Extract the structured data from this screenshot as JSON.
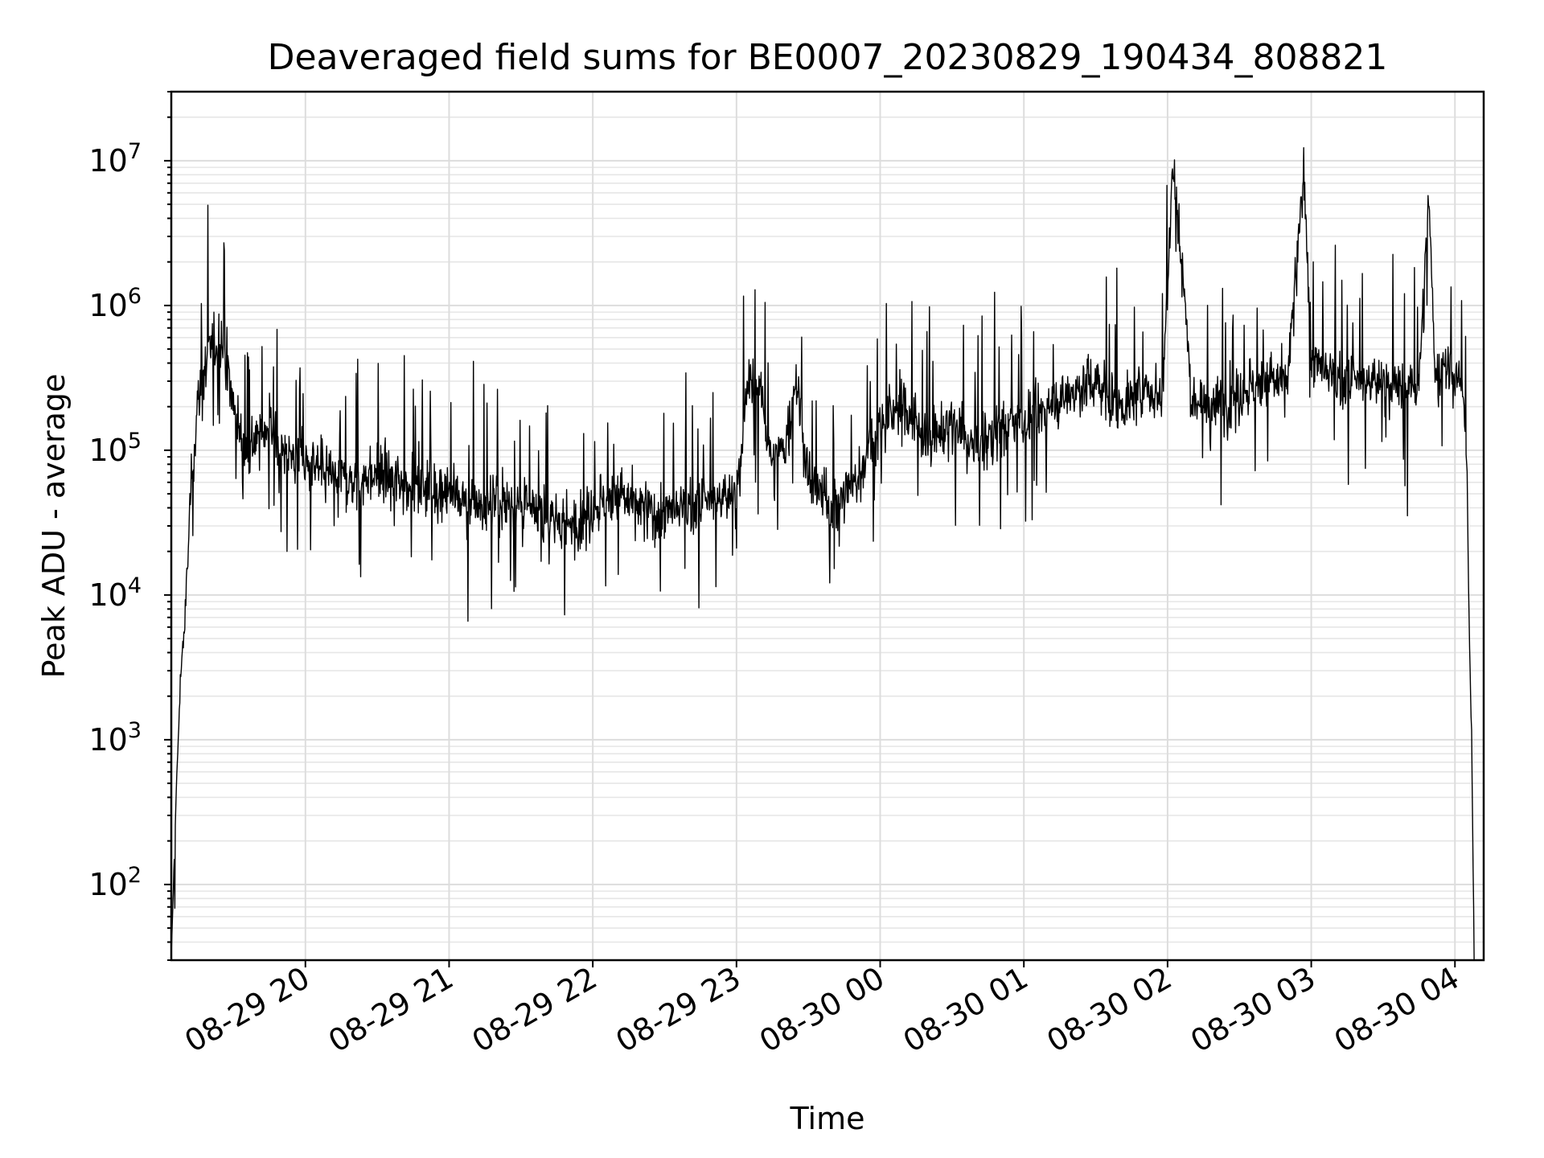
{
  "chart_data": {
    "type": "line",
    "title": "Deaveraged field sums for BE0007_20230829_190434_808821",
    "xlabel": "Time",
    "ylabel": "Peak ADU - average",
    "yscale": "log",
    "ylim": [
      30,
      30000000
    ],
    "y_ticks": [
      {
        "value": 100,
        "base": "10",
        "exp": "2"
      },
      {
        "value": 1000,
        "base": "10",
        "exp": "3"
      },
      {
        "value": 10000,
        "base": "10",
        "exp": "4"
      },
      {
        "value": 100000,
        "base": "10",
        "exp": "5"
      },
      {
        "value": 1000000,
        "base": "10",
        "exp": "6"
      },
      {
        "value": 10000000,
        "base": "10",
        "exp": "7"
      }
    ],
    "xlim": [
      "2023-08-29 19:04",
      "2023-08-30 04:12"
    ],
    "x_ticks": [
      {
        "time": "2023-08-29 20:00",
        "label": "08-29 20"
      },
      {
        "time": "2023-08-29 21:00",
        "label": "08-29 21"
      },
      {
        "time": "2023-08-29 22:00",
        "label": "08-29 22"
      },
      {
        "time": "2023-08-29 23:00",
        "label": "08-29 23"
      },
      {
        "time": "2023-08-30 00:00",
        "label": "08-30 00"
      },
      {
        "time": "2023-08-30 01:00",
        "label": "08-30 01"
      },
      {
        "time": "2023-08-30 02:00",
        "label": "08-30 02"
      },
      {
        "time": "2023-08-30 03:00",
        "label": "08-30 03"
      },
      {
        "time": "2023-08-30 04:00",
        "label": "08-30 04"
      }
    ],
    "grid": true,
    "series": [
      {
        "color": "#000000",
        "x": [
          "2023-08-29 19:04",
          "2023-08-29 19:06",
          "2023-08-29 19:08",
          "2023-08-29 19:10",
          "2023-08-29 19:12",
          "2023-08-29 19:15",
          "2023-08-29 19:20",
          "2023-08-29 19:25",
          "2023-08-29 19:30",
          "2023-08-29 19:35",
          "2023-08-29 19:40",
          "2023-08-29 19:45",
          "2023-08-29 19:50",
          "2023-08-29 19:55",
          "2023-08-29 20:00",
          "2023-08-29 20:10",
          "2023-08-29 20:20",
          "2023-08-29 20:30",
          "2023-08-29 20:40",
          "2023-08-29 20:50",
          "2023-08-29 21:00",
          "2023-08-29 21:10",
          "2023-08-29 21:20",
          "2023-08-29 21:30",
          "2023-08-29 21:40",
          "2023-08-29 21:50",
          "2023-08-29 22:00",
          "2023-08-29 22:10",
          "2023-08-29 22:20",
          "2023-08-29 22:30",
          "2023-08-29 22:40",
          "2023-08-29 22:50",
          "2023-08-29 23:00",
          "2023-08-29 23:05",
          "2023-08-29 23:10",
          "2023-08-29 23:15",
          "2023-08-29 23:20",
          "2023-08-29 23:25",
          "2023-08-29 23:30",
          "2023-08-29 23:35",
          "2023-08-29 23:40",
          "2023-08-29 23:45",
          "2023-08-29 23:50",
          "2023-08-29 23:55",
          "2023-08-30 00:00",
          "2023-08-30 00:10",
          "2023-08-30 00:20",
          "2023-08-30 00:30",
          "2023-08-30 00:40",
          "2023-08-30 00:50",
          "2023-08-30 01:00",
          "2023-08-30 01:10",
          "2023-08-30 01:20",
          "2023-08-30 01:30",
          "2023-08-30 01:40",
          "2023-08-30 01:50",
          "2023-08-30 01:58",
          "2023-08-30 02:02",
          "2023-08-30 02:06",
          "2023-08-30 02:10",
          "2023-08-30 02:20",
          "2023-08-30 02:30",
          "2023-08-30 02:40",
          "2023-08-30 02:50",
          "2023-08-30 02:55",
          "2023-08-30 02:57",
          "2023-08-30 03:00",
          "2023-08-30 03:10",
          "2023-08-30 03:20",
          "2023-08-30 03:30",
          "2023-08-30 03:40",
          "2023-08-30 03:45",
          "2023-08-30 03:49",
          "2023-08-30 03:52",
          "2023-08-30 03:55",
          "2023-08-30 04:00",
          "2023-08-30 04:03",
          "2023-08-30 04:05",
          "2023-08-30 04:06",
          "2023-08-30 04:07",
          "2023-08-30 04:08"
        ],
        "y": [
          30,
          400,
          3000,
          8000,
          50000,
          200000,
          500000,
          600000,
          200000,
          100000,
          120000,
          150000,
          100000,
          90000,
          80000,
          70000,
          60000,
          70000,
          60000,
          60000,
          50000,
          40000,
          45000,
          40000,
          35000,
          30000,
          40000,
          50000,
          40000,
          35000,
          40000,
          45000,
          50000,
          300000,
          250000,
          80000,
          100000,
          300000,
          60000,
          50000,
          40000,
          50000,
          60000,
          100000,
          150000,
          200000,
          120000,
          150000,
          100000,
          150000,
          150000,
          200000,
          250000,
          300000,
          200000,
          250000,
          250000,
          10000000,
          2000000,
          250000,
          200000,
          250000,
          300000,
          300000,
          3000000,
          10000000,
          400000,
          300000,
          300000,
          300000,
          250000,
          300000,
          5000000,
          300000,
          400000,
          300000,
          300000,
          80000,
          5000,
          1000,
          30
        ]
      }
    ]
  }
}
